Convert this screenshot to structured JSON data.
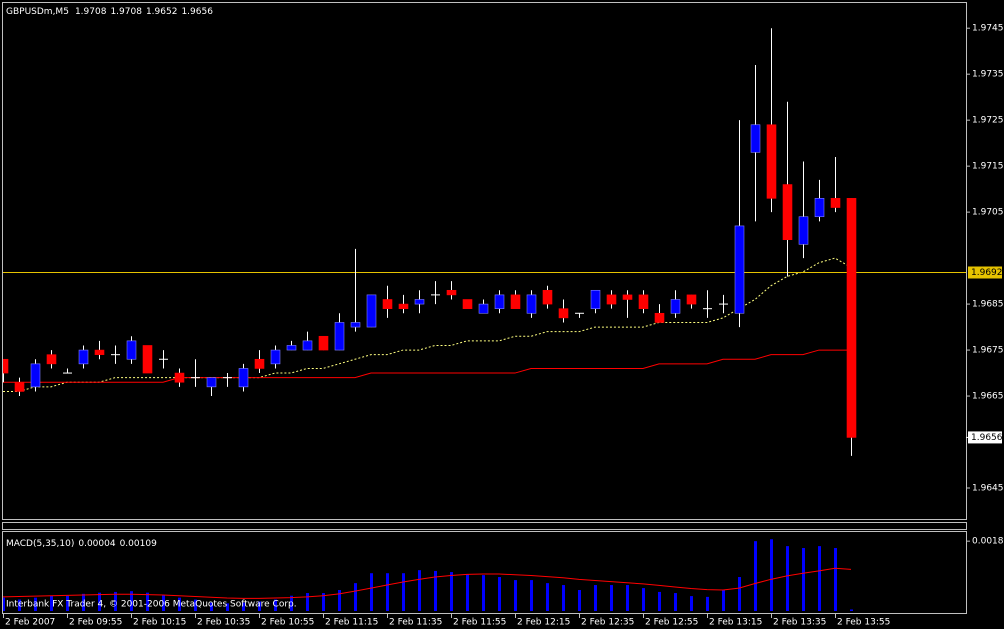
{
  "chart_data": [
    {
      "type": "candlestick",
      "title": "GBPUSDm,M5",
      "categories": [
        "2 Feb 2007",
        null,
        null,
        null,
        "2 Feb 09:55",
        null,
        null,
        null,
        "2 Feb 10:15",
        null,
        null,
        null,
        "2 Feb 10:35",
        null,
        null,
        null,
        "2 Feb 10:55",
        null,
        null,
        null,
        "2 Feb 11:15",
        null,
        null,
        null,
        "2 Feb 11:35",
        null,
        null,
        null,
        "2 Feb 11:55",
        null,
        null,
        null,
        "2 Feb 12:15",
        null,
        null,
        null,
        "2 Feb 12:35",
        null,
        null,
        null,
        "2 Feb 12:55",
        null,
        null,
        null,
        "2 Feb 13:15",
        null,
        null,
        null,
        "2 Feb 13:35",
        null,
        null,
        null,
        "2 Feb 13:55",
        null
      ],
      "open": [
        1.9673,
        1.9668,
        1.9667,
        1.9674,
        1.967,
        1.9672,
        1.9675,
        1.9674,
        1.9673,
        1.9676,
        1.9673,
        1.967,
        1.9669,
        1.9667,
        1.9669,
        1.9667,
        1.9673,
        1.9672,
        1.9675,
        1.9675,
        1.9678,
        1.9675,
        1.968,
        1.968,
        1.9686,
        1.9685,
        1.9685,
        1.9687,
        1.9688,
        1.9686,
        1.9683,
        1.9684,
        1.9687,
        1.9683,
        1.9688,
        1.9684,
        1.9683,
        1.9684,
        1.9687,
        1.9687,
        1.9687,
        1.9683,
        1.9683,
        1.9687,
        1.9684,
        1.9685,
        1.9683,
        1.9718,
        1.9724,
        1.9711,
        1.9698,
        1.9704,
        1.9708,
        1.9708
      ],
      "high": [
        1.9673,
        1.9669,
        1.9673,
        1.9675,
        1.9671,
        1.9676,
        1.9677,
        1.9676,
        1.9678,
        1.9676,
        1.9675,
        1.9671,
        1.9673,
        1.9669,
        1.967,
        1.9672,
        1.9675,
        1.9676,
        1.9677,
        1.9679,
        1.9678,
        1.9683,
        1.9697,
        1.9687,
        1.9689,
        1.9687,
        1.9688,
        1.969,
        1.969,
        1.9686,
        1.9686,
        1.9688,
        1.9688,
        1.9688,
        1.9689,
        1.9686,
        1.9683,
        1.9688,
        1.9688,
        1.9688,
        1.9688,
        1.9685,
        1.9688,
        1.9687,
        1.9688,
        1.9687,
        1.9725,
        1.9737,
        1.9745,
        1.9729,
        1.9716,
        1.9712,
        1.9717,
        1.9708
      ],
      "low": [
        1.9668,
        1.9665,
        1.9666,
        1.9671,
        1.967,
        1.9671,
        1.9673,
        1.9672,
        1.9672,
        1.967,
        1.9671,
        1.9667,
        1.9667,
        1.9665,
        1.9667,
        1.9666,
        1.967,
        1.9671,
        1.9675,
        1.9675,
        1.9675,
        1.9675,
        1.9679,
        1.968,
        1.9682,
        1.9683,
        1.9683,
        1.9685,
        1.9686,
        1.9684,
        1.9683,
        1.9683,
        1.9684,
        1.9682,
        1.9684,
        1.9681,
        1.9682,
        1.9683,
        1.9684,
        1.9682,
        1.9683,
        1.9681,
        1.9682,
        1.9684,
        1.9682,
        1.9683,
        1.968,
        1.9703,
        1.9705,
        1.9691,
        1.9695,
        1.9703,
        1.9705,
        1.9652
      ],
      "close": [
        1.967,
        1.9666,
        1.9672,
        1.9672,
        1.967,
        1.9675,
        1.9674,
        1.9674,
        1.9677,
        1.967,
        1.9673,
        1.9668,
        1.9669,
        1.9669,
        1.9669,
        1.9671,
        1.9671,
        1.9675,
        1.9676,
        1.9677,
        1.9675,
        1.9681,
        1.9681,
        1.9687,
        1.9684,
        1.9684,
        1.9686,
        1.9687,
        1.9687,
        1.9684,
        1.9685,
        1.9687,
        1.9684,
        1.9687,
        1.9685,
        1.9682,
        1.9683,
        1.9688,
        1.9685,
        1.9686,
        1.9684,
        1.9681,
        1.9686,
        1.9685,
        1.9684,
        1.9685,
        1.9702,
        1.9724,
        1.9708,
        1.9699,
        1.9704,
        1.9708,
        1.9706,
        1.9656
      ],
      "up_color": "#0000ff",
      "down_color": "#ff0000",
      "wick_color": "#ffffff",
      "lines": [
        {
          "color": "#ffff80",
          "dashed": true,
          "values": [
            1.9666,
            1.9666,
            1.9667,
            1.9667,
            1.9668,
            1.9668,
            1.9668,
            1.9669,
            1.9669,
            1.9669,
            1.9669,
            1.9669,
            1.9669,
            1.9669,
            1.9669,
            1.9669,
            1.9669,
            1.967,
            1.967,
            1.9671,
            1.9671,
            1.9672,
            1.9673,
            1.9674,
            1.9674,
            1.9675,
            1.9675,
            1.9676,
            1.9676,
            1.9677,
            1.9677,
            1.9677,
            1.9678,
            1.9678,
            1.9679,
            1.9679,
            1.9679,
            1.968,
            1.968,
            1.968,
            1.968,
            1.9681,
            1.9681,
            1.9681,
            1.9681,
            1.9682,
            1.9684,
            1.9686,
            1.9689,
            1.9691,
            1.9692,
            1.9694,
            1.9695,
            1.9693
          ]
        },
        {
          "color": "#ff0000",
          "dashed": false,
          "values": [
            1.9668,
            1.9668,
            1.9668,
            1.9668,
            1.9668,
            1.9668,
            1.9668,
            1.9668,
            1.9668,
            1.9668,
            1.9668,
            1.9669,
            1.9669,
            1.9669,
            1.9669,
            1.9669,
            1.9669,
            1.9669,
            1.9669,
            1.9669,
            1.9669,
            1.9669,
            1.9669,
            1.967,
            1.967,
            1.967,
            1.967,
            1.967,
            1.967,
            1.967,
            1.967,
            1.967,
            1.967,
            1.9671,
            1.9671,
            1.9671,
            1.9671,
            1.9671,
            1.9671,
            1.9671,
            1.9671,
            1.9672,
            1.9672,
            1.9672,
            1.9672,
            1.9673,
            1.9673,
            1.9673,
            1.9674,
            1.9674,
            1.9674,
            1.9675,
            1.9675,
            1.9675
          ]
        }
      ],
      "hline": {
        "value": 1.9692,
        "color": "#e6c300"
      },
      "bid": 1.9656,
      "ylim": [
        1.964,
        1.9747
      ],
      "yticks": [
        1.9745,
        1.9735,
        1.9725,
        1.9715,
        1.9705,
        1.9685,
        1.9675,
        1.9665,
        1.9645
      ]
    },
    {
      "type": "macd",
      "title": "MACD(5,35,10)",
      "histogram": [
        0.00035,
        0.0003,
        0.00035,
        0.0004,
        0.0004,
        0.00045,
        0.00048,
        0.0005,
        0.00052,
        0.00048,
        0.00042,
        0.00035,
        0.0003,
        0.00022,
        0.0002,
        0.00022,
        0.00025,
        0.0003,
        0.0004,
        0.00047,
        0.00047,
        0.00055,
        0.00073,
        0.00099,
        0.00099,
        0.00099,
        0.00107,
        0.00105,
        0.00102,
        0.00097,
        0.00094,
        0.00089,
        0.00081,
        0.00081,
        0.00073,
        0.00068,
        0.00055,
        0.00068,
        0.00068,
        0.00068,
        0.0006,
        0.0005,
        0.00047,
        0.00039,
        0.00037,
        0.00055,
        0.00089,
        0.00183,
        0.00188,
        0.0017,
        0.00165,
        0.0017,
        0.00165,
        4e-05
      ],
      "signal": [
        0.00037,
        0.00038,
        0.00039,
        0.0004,
        0.00041,
        0.00042,
        0.00043,
        0.00044,
        0.00044,
        0.00043,
        0.00042,
        0.0004,
        0.00038,
        0.00036,
        0.00034,
        0.00033,
        0.00033,
        0.00034,
        0.00035,
        0.00037,
        0.0004,
        0.00045,
        0.00052,
        0.0006,
        0.00068,
        0.00076,
        0.00083,
        0.00089,
        0.00093,
        0.00096,
        0.00097,
        0.00097,
        0.00095,
        0.00093,
        0.0009,
        0.00087,
        0.00083,
        0.0008,
        0.00077,
        0.00074,
        0.00071,
        0.00067,
        0.00063,
        0.00059,
        0.00056,
        0.00055,
        0.0006,
        0.00072,
        0.00083,
        0.00092,
        0.00099,
        0.00105,
        0.00112,
        0.00109
      ],
      "histogram_color": "#0000ff",
      "signal_color": "#ff0000",
      "ylim": [
        0,
        0.00207
      ],
      "yticks": [
        0.00183
      ],
      "annotation": "Interbank FX Trader 4, © 2001-2006 MetaQuotes Software Corp."
    }
  ]
}
